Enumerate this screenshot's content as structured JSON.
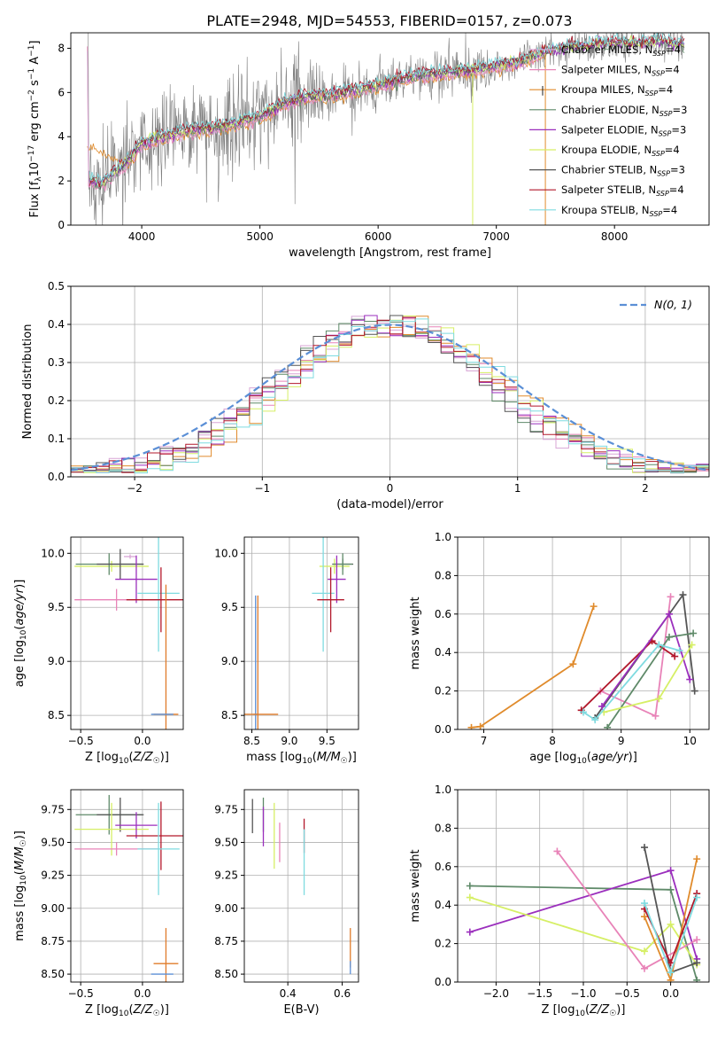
{
  "figure": {
    "title": "PLATE=2948, MJD=54553, FIBERID=0157, z=0.073"
  },
  "colors": {
    "Chabrier MILES": "#d8a6d6",
    "Salpeter MILES": "#e883b8",
    "Kroupa MILES": "#e08b2c",
    "Chabrier ELODIE": "#5f8a69",
    "Salpeter ELODIE": "#9b2fbd",
    "Kroupa ELODIE": "#d6ef66",
    "Chabrier STELIB": "#555555",
    "Salpeter STELIB": "#b2182b",
    "Kroupa STELIB": "#7fdbe0",
    "extra_blue": "#5b8fd6",
    "extra_orange": "#e07b2a",
    "data": "#7f7f7f",
    "gauss": "#5b8fd6"
  },
  "chart_data": [
    {
      "id": "spectrum",
      "type": "line",
      "title": "PLATE=2948, MJD=54553, FIBERID=0157, z=0.073",
      "xlabel": "wavelength [Angstrom, rest frame]",
      "ylabel": "Flux [f_λ 10^-17 erg cm^-2 s^-1 A^-1]",
      "xlim": [
        3400,
        8800
      ],
      "ylim": [
        0,
        8.7
      ],
      "xticks": [
        4000,
        5000,
        6000,
        7000,
        8000
      ],
      "yticks": [
        0,
        2,
        4,
        6,
        8
      ],
      "legend_loc": "right",
      "legend": [
        {
          "label": "Chabrier MILES, N",
          "sub": "SSP",
          "tail": "=4",
          "color": "#d8a6d6"
        },
        {
          "label": "Salpeter MILES, N",
          "sub": "SSP",
          "tail": "=4",
          "color": "#e883b8"
        },
        {
          "label": "Kroupa MILES, N",
          "sub": "SSP",
          "tail": "=4",
          "color": "#e08b2c"
        },
        {
          "label": "Chabrier ELODIE, N",
          "sub": "SSP",
          "tail": "=3",
          "color": "#5f8a69"
        },
        {
          "label": "Salpeter ELODIE, N",
          "sub": "SSP",
          "tail": "=3",
          "color": "#9b2fbd"
        },
        {
          "label": "Kroupa ELODIE, N",
          "sub": "SSP",
          "tail": "=4",
          "color": "#d6ef66"
        },
        {
          "label": "Chabrier STELIB, N",
          "sub": "SSP",
          "tail": "=3",
          "color": "#555555"
        },
        {
          "label": "Salpeter STELIB, N",
          "sub": "SSP",
          "tail": "=4",
          "color": "#b2182b"
        },
        {
          "label": "Kroupa STELIB, N",
          "sub": "SSP",
          "tail": "=4",
          "color": "#7fdbe0"
        }
      ],
      "continuum": {
        "x": [
          3550,
          3650,
          3800,
          3900,
          4000,
          4200,
          4400,
          4600,
          4800,
          5000,
          5200,
          5400,
          5600,
          5800,
          6000,
          6200,
          6400,
          6600,
          6800,
          7000,
          7200,
          7400,
          7600,
          7800,
          8000,
          8200,
          8400,
          8600
        ],
        "y": [
          2.0,
          1.8,
          2.5,
          3.0,
          3.7,
          4.0,
          4.3,
          4.4,
          4.6,
          4.9,
          5.5,
          5.8,
          5.9,
          6.1,
          6.3,
          6.6,
          6.8,
          6.9,
          7.0,
          7.2,
          7.4,
          7.8,
          8.0,
          8.1,
          8.2,
          8.2,
          8.3,
          8.1
        ]
      }
    },
    {
      "id": "residuals",
      "type": "line",
      "xlabel": "(data-model)/error",
      "ylabel": "Normed distribution",
      "xlim": [
        -2.5,
        2.5
      ],
      "ylim": [
        0,
        0.5
      ],
      "xticks": [
        -2,
        -1,
        0,
        1,
        2
      ],
      "yticks": [
        0.0,
        0.1,
        0.2,
        0.3,
        0.4,
        0.5
      ],
      "legend_loc": "upper right",
      "gauss_label": "N(0, 1)"
    },
    {
      "id": "age_vs_Z",
      "type": "scatter",
      "xlabel": "Z [log10(Z/Z☉)]",
      "ylabel": "age [log10(age/yr)]",
      "xlim": [
        -0.58,
        0.33
      ],
      "ylim": [
        8.37,
        10.15
      ],
      "xticks": [
        -0.5,
        0.0
      ],
      "yticks": [
        8.5,
        9.0,
        9.5,
        10.0
      ],
      "points": [
        {
          "series": "Chabrier MILES",
          "x": -0.1,
          "y": 9.97,
          "xerr": 0.05,
          "yerr": 0.02
        },
        {
          "series": "Salpeter MILES",
          "x": -0.21,
          "y": 9.57,
          "xerr": 0.34,
          "yerr": 0.1
        },
        {
          "series": "Kroupa ELODIE",
          "x": -0.25,
          "y": 9.88,
          "xerr": 0.3,
          "yerr": 0.05
        },
        {
          "series": "Chabrier ELODIE",
          "x": -0.27,
          "y": 9.9,
          "xerr": 0.27,
          "yerr": 0.1
        },
        {
          "series": "Chabrier STELIB",
          "x": -0.18,
          "y": 9.9,
          "xerr": 0.19,
          "yerr": 0.14
        },
        {
          "series": "Salpeter ELODIE",
          "x": -0.05,
          "y": 9.76,
          "xerr": 0.17,
          "yerr": 0.22
        },
        {
          "series": "Kroupa STELIB",
          "x": 0.13,
          "y": 9.63,
          "xerr": 0.17,
          "yerr": 0.54
        },
        {
          "series": "Salpeter STELIB",
          "x": 0.15,
          "y": 9.57,
          "xerr": 0.28,
          "yerr": 0.3
        },
        {
          "series": "extra_orange",
          "x": 0.19,
          "y": 8.51,
          "xerr": 0.1,
          "yerr": 1.2
        },
        {
          "series": "extra_blue",
          "x": 0.16,
          "y": 8.51,
          "xerr": 0.09,
          "yerr": 0.0
        }
      ]
    },
    {
      "id": "age_vs_mass",
      "type": "scatter",
      "xlabel": "mass [log10(M/M☉)]",
      "ylabel": "",
      "xlim": [
        8.4,
        9.92
      ],
      "ylim": [
        8.37,
        10.15
      ],
      "xticks": [
        8.5,
        9.0,
        9.5
      ],
      "yticks": [
        8.5,
        9.0,
        9.5,
        10.0
      ],
      "points": [
        {
          "series": "Chabrier STELIB",
          "x": 9.71,
          "y": 9.9,
          "xerr": 0.14,
          "yerr": 0.05
        },
        {
          "series": "Kroupa ELODIE",
          "x": 9.6,
          "y": 9.88,
          "xerr": 0.2,
          "yerr": 0.07
        },
        {
          "series": "Chabrier ELODIE",
          "x": 9.71,
          "y": 9.9,
          "xerr": 0.13,
          "yerr": 0.1
        },
        {
          "series": "Salpeter ELODIE",
          "x": 9.63,
          "y": 9.76,
          "xerr": 0.12,
          "yerr": 0.22
        },
        {
          "series": "Kroupa STELIB",
          "x": 9.45,
          "y": 9.63,
          "xerr": 0.15,
          "yerr": 0.54
        },
        {
          "series": "Salpeter STELIB",
          "x": 9.55,
          "y": 9.57,
          "xerr": 0.18,
          "yerr": 0.3
        },
        {
          "series": "extra_blue",
          "x": 8.55,
          "y": 8.51,
          "xerr": 0.03,
          "yerr": 1.1
        },
        {
          "series": "extra_orange",
          "x": 8.58,
          "y": 8.51,
          "xerr": 0.27,
          "yerr": 1.1
        }
      ]
    },
    {
      "id": "weight_vs_age",
      "type": "line",
      "xlabel": "age [log10(age/yr)]",
      "ylabel": "mass weight",
      "xlim": [
        6.62,
        10.28
      ],
      "ylim": [
        0,
        1
      ],
      "xticks": [
        7,
        8,
        9,
        10
      ],
      "yticks": [
        0.0,
        0.2,
        0.4,
        0.6,
        0.8,
        1.0
      ],
      "series": [
        {
          "name": "Kroupa MILES",
          "x": [
            6.82,
            6.95,
            8.3,
            8.6
          ],
          "y": [
            0.01,
            0.015,
            0.34,
            0.64
          ]
        },
        {
          "name": "Salpeter MILES",
          "x": [
            8.7,
            9.5,
            9.72
          ],
          "y": [
            0.2,
            0.07,
            0.69
          ]
        },
        {
          "name": "Chabrier STELIB",
          "x": [
            8.62,
            9.9,
            10.07
          ],
          "y": [
            0.06,
            0.7,
            0.2
          ]
        },
        {
          "name": "Salpeter STELIB",
          "x": [
            8.42,
            9.45,
            9.78
          ],
          "y": [
            0.1,
            0.46,
            0.38
          ]
        },
        {
          "name": "Salpeter ELODIE",
          "x": [
            8.72,
            9.7,
            10.0
          ],
          "y": [
            0.12,
            0.6,
            0.26
          ]
        },
        {
          "name": "Chabrier ELODIE",
          "x": [
            8.8,
            9.7,
            10.05
          ],
          "y": [
            0.01,
            0.48,
            0.5
          ]
        },
        {
          "name": "Kroupa ELODIE",
          "x": [
            8.75,
            9.55,
            10.03
          ],
          "y": [
            0.09,
            0.16,
            0.44
          ]
        },
        {
          "name": "Kroupa STELIB",
          "x": [
            8.45,
            8.62,
            9.55,
            9.85
          ],
          "y": [
            0.09,
            0.05,
            0.44,
            0.41
          ]
        }
      ]
    },
    {
      "id": "mass_vs_Z",
      "type": "scatter",
      "xlabel": "Z [log10(Z/Z☉)]",
      "ylabel": "mass [log10(M/M☉)]",
      "xlim": [
        -0.58,
        0.33
      ],
      "ylim": [
        8.44,
        9.9
      ],
      "xticks": [
        -0.5,
        0.0
      ],
      "yticks": [
        8.5,
        8.75,
        9.0,
        9.25,
        9.5,
        9.75
      ],
      "points": [
        {
          "series": "Chabrier ELODIE",
          "x": -0.27,
          "y": 9.71,
          "xerr": 0.27,
          "yerr": 0.15
        },
        {
          "series": "Chabrier STELIB",
          "x": -0.18,
          "y": 9.71,
          "xerr": 0.19,
          "yerr": 0.13
        },
        {
          "series": "Kroupa ELODIE",
          "x": -0.25,
          "y": 9.6,
          "xerr": 0.3,
          "yerr": 0.2
        },
        {
          "series": "Salpeter ELODIE",
          "x": -0.05,
          "y": 9.63,
          "xerr": 0.17,
          "yerr": 0.1
        },
        {
          "series": "Salpeter STELIB",
          "x": 0.15,
          "y": 9.55,
          "xerr": 0.28,
          "yerr": 0.26
        },
        {
          "series": "Salpeter MILES",
          "x": -0.21,
          "y": 9.45,
          "xerr": 0.34,
          "yerr": 0.05
        },
        {
          "series": "Kroupa STELIB",
          "x": 0.13,
          "y": 9.45,
          "xerr": 0.17,
          "yerr": 0.35
        },
        {
          "series": "extra_orange",
          "x": 0.19,
          "y": 8.58,
          "xerr": 0.1,
          "yerr": 0.27
        },
        {
          "series": "extra_blue",
          "x": 0.16,
          "y": 8.5,
          "xerr": 0.09,
          "yerr": 0.0
        }
      ]
    },
    {
      "id": "mass_vs_EBV",
      "type": "scatter",
      "xlabel": "E(B-V)",
      "ylabel": "",
      "xlim": [
        0.24,
        0.66
      ],
      "ylim": [
        8.44,
        9.9
      ],
      "xticks": [
        0.4,
        0.6
      ],
      "yticks": [
        8.5,
        8.75,
        9.0,
        9.25,
        9.5,
        9.75
      ],
      "points": [
        {
          "series": "Chabrier STELIB",
          "x": 0.27,
          "y": 9.7,
          "yerr": 0.13
        },
        {
          "series": "Chabrier ELODIE",
          "x": 0.31,
          "y": 9.71,
          "yerr": 0.13
        },
        {
          "series": "Salpeter ELODIE",
          "x": 0.31,
          "y": 9.62,
          "yerr": 0.15
        },
        {
          "series": "Kroupa ELODIE",
          "x": 0.35,
          "y": 9.55,
          "yerr": 0.25
        },
        {
          "series": "Salpeter MILES",
          "x": 0.37,
          "y": 9.5,
          "yerr": 0.15
        },
        {
          "series": "Salpeter STELIB",
          "x": 0.46,
          "y": 9.55,
          "yerr": 0.13
        },
        {
          "series": "Kroupa STELIB",
          "x": 0.46,
          "y": 9.35,
          "yerr": 0.25
        },
        {
          "series": "extra_orange",
          "x": 0.63,
          "y": 8.7,
          "yerr": 0.15
        },
        {
          "series": "extra_blue",
          "x": 0.63,
          "y": 8.55,
          "yerr": 0.05
        }
      ]
    },
    {
      "id": "weight_vs_Z",
      "type": "line",
      "xlabel": "Z [log10(Z/Z☉)]",
      "ylabel": "mass weight",
      "xlim": [
        -2.44,
        0.44
      ],
      "ylim": [
        0,
        1
      ],
      "xticks": [
        -2.0,
        -1.5,
        -1.0,
        -0.5,
        0.0
      ],
      "yticks": [
        0.0,
        0.2,
        0.4,
        0.6,
        0.8,
        1.0
      ],
      "series": [
        {
          "name": "Chabrier ELODIE",
          "x": [
            -2.3,
            0.0,
            0.3
          ],
          "y": [
            0.5,
            0.48,
            0.01
          ]
        },
        {
          "name": "Salpeter ELODIE",
          "x": [
            -2.3,
            0.0,
            0.3
          ],
          "y": [
            0.26,
            0.58,
            0.12
          ]
        },
        {
          "name": "Kroupa ELODIE",
          "x": [
            -2.3,
            -0.3,
            0.0,
            0.3
          ],
          "y": [
            0.44,
            0.16,
            0.3,
            0.09
          ]
        },
        {
          "name": "Salpeter MILES",
          "x": [
            -1.3,
            -0.3,
            0.3
          ],
          "y": [
            0.68,
            0.07,
            0.22
          ]
        },
        {
          "name": "Chabrier STELIB",
          "x": [
            -0.3,
            0.0,
            0.3
          ],
          "y": [
            0.7,
            0.05,
            0.1
          ]
        },
        {
          "name": "Kroupa MILES",
          "x": [
            -0.3,
            0.0,
            0.3
          ],
          "y": [
            0.34,
            0.01,
            0.64
          ]
        },
        {
          "name": "Salpeter STELIB",
          "x": [
            -0.3,
            0.0,
            0.3
          ],
          "y": [
            0.38,
            0.1,
            0.46
          ]
        },
        {
          "name": "Kroupa STELIB",
          "x": [
            -0.3,
            0.0,
            0.3
          ],
          "y": [
            0.41,
            0.05,
            0.44
          ]
        }
      ]
    }
  ]
}
